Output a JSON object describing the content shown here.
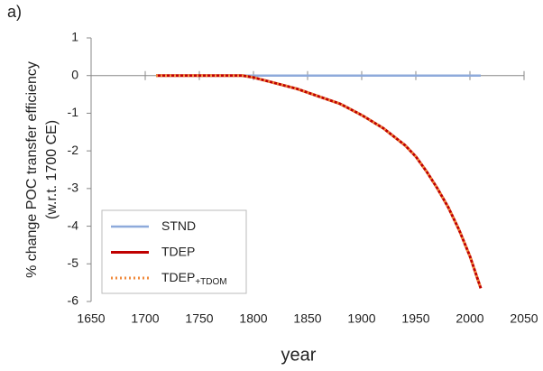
{
  "chart_data": {
    "type": "line",
    "panel_label": "a)",
    "x_label": "year",
    "y_label": [
      "% change POC transfer efficiency",
      "(w.r.t. 1700 CE)"
    ],
    "xlim": [
      1650,
      2050
    ],
    "xticks": [
      1650,
      1700,
      1750,
      1800,
      1850,
      1900,
      1950,
      2000,
      2050
    ],
    "ylim": [
      -6,
      1
    ],
    "yticks": [
      1,
      0,
      -1,
      -2,
      -3,
      -4,
      -5,
      -6
    ],
    "legend": "lower left",
    "series": [
      {
        "name": "STND",
        "color": "#8eaadb",
        "style": "solid",
        "x": [
          1710,
          1750,
          1800,
          1850,
          1900,
          1950,
          2010
        ],
        "values": [
          0,
          0,
          0,
          0,
          0,
          0,
          0
        ]
      },
      {
        "name": "TDEP",
        "color": "#c00000",
        "style": "solid",
        "x": [
          1710,
          1750,
          1790,
          1800,
          1820,
          1840,
          1860,
          1880,
          1900,
          1920,
          1940,
          1950,
          1960,
          1970,
          1980,
          1990,
          2000,
          2010
        ],
        "values": [
          0,
          0,
          0,
          -0.05,
          -0.2,
          -0.35,
          -0.55,
          -0.75,
          -1.05,
          -1.4,
          -1.85,
          -2.15,
          -2.55,
          -3.0,
          -3.5,
          -4.1,
          -4.8,
          -5.65
        ]
      },
      {
        "name": "TDEP",
        "name_subscript": "+TDOM",
        "color": "#f08a3c",
        "style": "dotted",
        "x": [
          1710,
          1750,
          1790,
          1800,
          1820,
          1840,
          1860,
          1880,
          1900,
          1920,
          1940,
          1950,
          1960,
          1970,
          1980,
          1990,
          2000,
          2010
        ],
        "values": [
          0,
          0,
          0,
          -0.05,
          -0.2,
          -0.35,
          -0.55,
          -0.75,
          -1.05,
          -1.4,
          -1.85,
          -2.15,
          -2.55,
          -3.0,
          -3.5,
          -4.1,
          -4.8,
          -5.65
        ]
      }
    ]
  }
}
